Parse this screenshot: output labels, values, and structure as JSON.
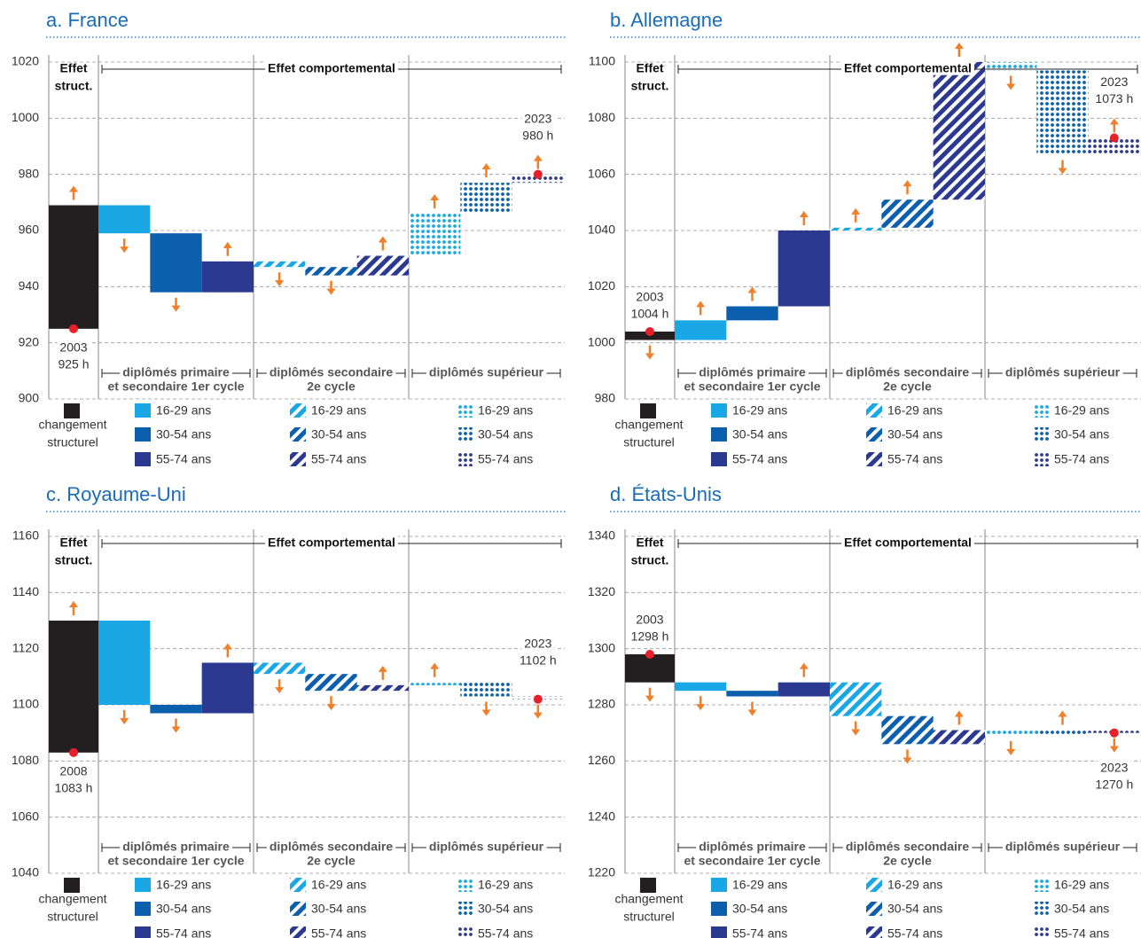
{
  "chart_data": [
    {
      "type": "waterfall",
      "title": "a. France",
      "ylim": [
        900,
        1020
      ],
      "yticks": [
        900,
        920,
        940,
        960,
        980,
        1000,
        1020
      ],
      "grid": true,
      "start": {
        "year": "2003",
        "value": 925,
        "value_label": "925 h"
      },
      "end": {
        "year": "2023",
        "value": 980,
        "value_label": "980 h"
      },
      "structural": {
        "header": [
          "Effet",
          "struct."
        ],
        "legend": [
          "changement",
          "structurel"
        ],
        "color": "#231f20",
        "value": 44
      },
      "behavioral_header": "Effet comportemental",
      "groups": [
        {
          "name": [
            "diplômés primaire",
            "et secondaire 1er cycle"
          ],
          "pattern": "solid"
        },
        {
          "name": [
            "diplômés secondaire",
            "2e cycle"
          ],
          "pattern": "stripes"
        },
        {
          "name": [
            "diplômés supérieur"
          ],
          "pattern": "dots"
        }
      ],
      "series": [
        {
          "name": "16-29 ans",
          "color": "#1aa7e6",
          "values": [
            -10,
            -2,
            15
          ]
        },
        {
          "name": "30-54 ans",
          "color": "#0b5fad",
          "values": [
            -21,
            -3,
            11
          ]
        },
        {
          "name": "55-74 ans",
          "color": "#2b3990",
          "values": [
            11,
            7,
            3
          ]
        }
      ]
    },
    {
      "type": "waterfall",
      "title": "b. Allemagne",
      "ylim": [
        980,
        1100
      ],
      "yticks": [
        980,
        1000,
        1020,
        1040,
        1060,
        1080,
        1100
      ],
      "grid": true,
      "start": {
        "year": "2003",
        "value": 1004,
        "value_label": "1004 h"
      },
      "end": {
        "year": "2023",
        "value": 1073,
        "value_label": "1073 h"
      },
      "structural": {
        "header": [
          "Effet",
          "struct."
        ],
        "legend": [
          "changement",
          "structurel"
        ],
        "color": "#231f20",
        "value": -3
      },
      "behavioral_header": "Effet comportemental",
      "groups": [
        {
          "name": [
            "diplômés primaire",
            "et secondaire 1er cycle"
          ],
          "pattern": "solid"
        },
        {
          "name": [
            "diplômés secondaire",
            "2e cycle"
          ],
          "pattern": "stripes"
        },
        {
          "name": [
            "diplômés supérieur"
          ],
          "pattern": "dots"
        }
      ],
      "series": [
        {
          "name": "16-29 ans",
          "color": "#1aa7e6",
          "values": [
            7,
            1,
            -3
          ]
        },
        {
          "name": "30-54 ans",
          "color": "#0b5fad",
          "values": [
            5,
            10,
            -30
          ]
        },
        {
          "name": "55-74 ans",
          "color": "#2b3990",
          "values": [
            27,
            49,
            6
          ]
        }
      ]
    },
    {
      "type": "waterfall",
      "title": "c. Royaume-Uni",
      "ylim": [
        1040,
        1160
      ],
      "yticks": [
        1040,
        1060,
        1080,
        1100,
        1120,
        1140,
        1160
      ],
      "grid": true,
      "start": {
        "year": "2008",
        "value": 1083,
        "value_label": "1083 h"
      },
      "end": {
        "year": "2023",
        "value": 1102,
        "value_label": "1102 h"
      },
      "structural": {
        "header": [
          "Effet",
          "struct."
        ],
        "legend": [
          "changement",
          "structurel"
        ],
        "color": "#231f20",
        "value": 47
      },
      "behavioral_header": "Effet comportemental",
      "groups": [
        {
          "name": [
            "diplômés primaire",
            "et secondaire 1er cycle"
          ],
          "pattern": "solid"
        },
        {
          "name": [
            "diplômés secondaire",
            "2e cycle"
          ],
          "pattern": "stripes"
        },
        {
          "name": [
            "diplômés supérieur"
          ],
          "pattern": "dots"
        }
      ],
      "series": [
        {
          "name": "16-29 ans",
          "color": "#1aa7e6",
          "values": [
            -30,
            -4,
            1
          ]
        },
        {
          "name": "30-54 ans",
          "color": "#0b5fad",
          "values": [
            -3,
            -6,
            -5
          ]
        },
        {
          "name": "55-74 ans",
          "color": "#2b3990",
          "values": [
            18,
            2,
            -1
          ]
        }
      ]
    },
    {
      "type": "waterfall",
      "title": "d. États-Unis",
      "ylim": [
        1220,
        1340
      ],
      "yticks": [
        1220,
        1240,
        1260,
        1280,
        1300,
        1320,
        1340
      ],
      "grid": true,
      "start": {
        "year": "2003",
        "value": 1298,
        "value_label": "1298 h"
      },
      "end": {
        "year": "2023",
        "value": 1270,
        "value_label": "1270 h"
      },
      "structural": {
        "header": [
          "Effet",
          "struct."
        ],
        "legend": [
          "changement",
          "structurel"
        ],
        "color": "#231f20",
        "value": -10
      },
      "behavioral_header": "Effet comportemental",
      "groups": [
        {
          "name": [
            "diplômés primaire",
            "et secondaire 1er cycle"
          ],
          "pattern": "solid"
        },
        {
          "name": [
            "diplômés secondaire",
            "2e cycle"
          ],
          "pattern": "stripes"
        },
        {
          "name": [
            "diplômés supérieur"
          ],
          "pattern": "dots"
        }
      ],
      "series": [
        {
          "name": "16-29 ans",
          "color": "#1aa7e6",
          "values": [
            -3,
            -12,
            -2
          ]
        },
        {
          "name": "30-54 ans",
          "color": "#0b5fad",
          "values": [
            -2,
            -10,
            2
          ]
        },
        {
          "name": "55-74 ans",
          "color": "#2b3990",
          "values": [
            5,
            5,
            -1
          ]
        }
      ]
    }
  ]
}
